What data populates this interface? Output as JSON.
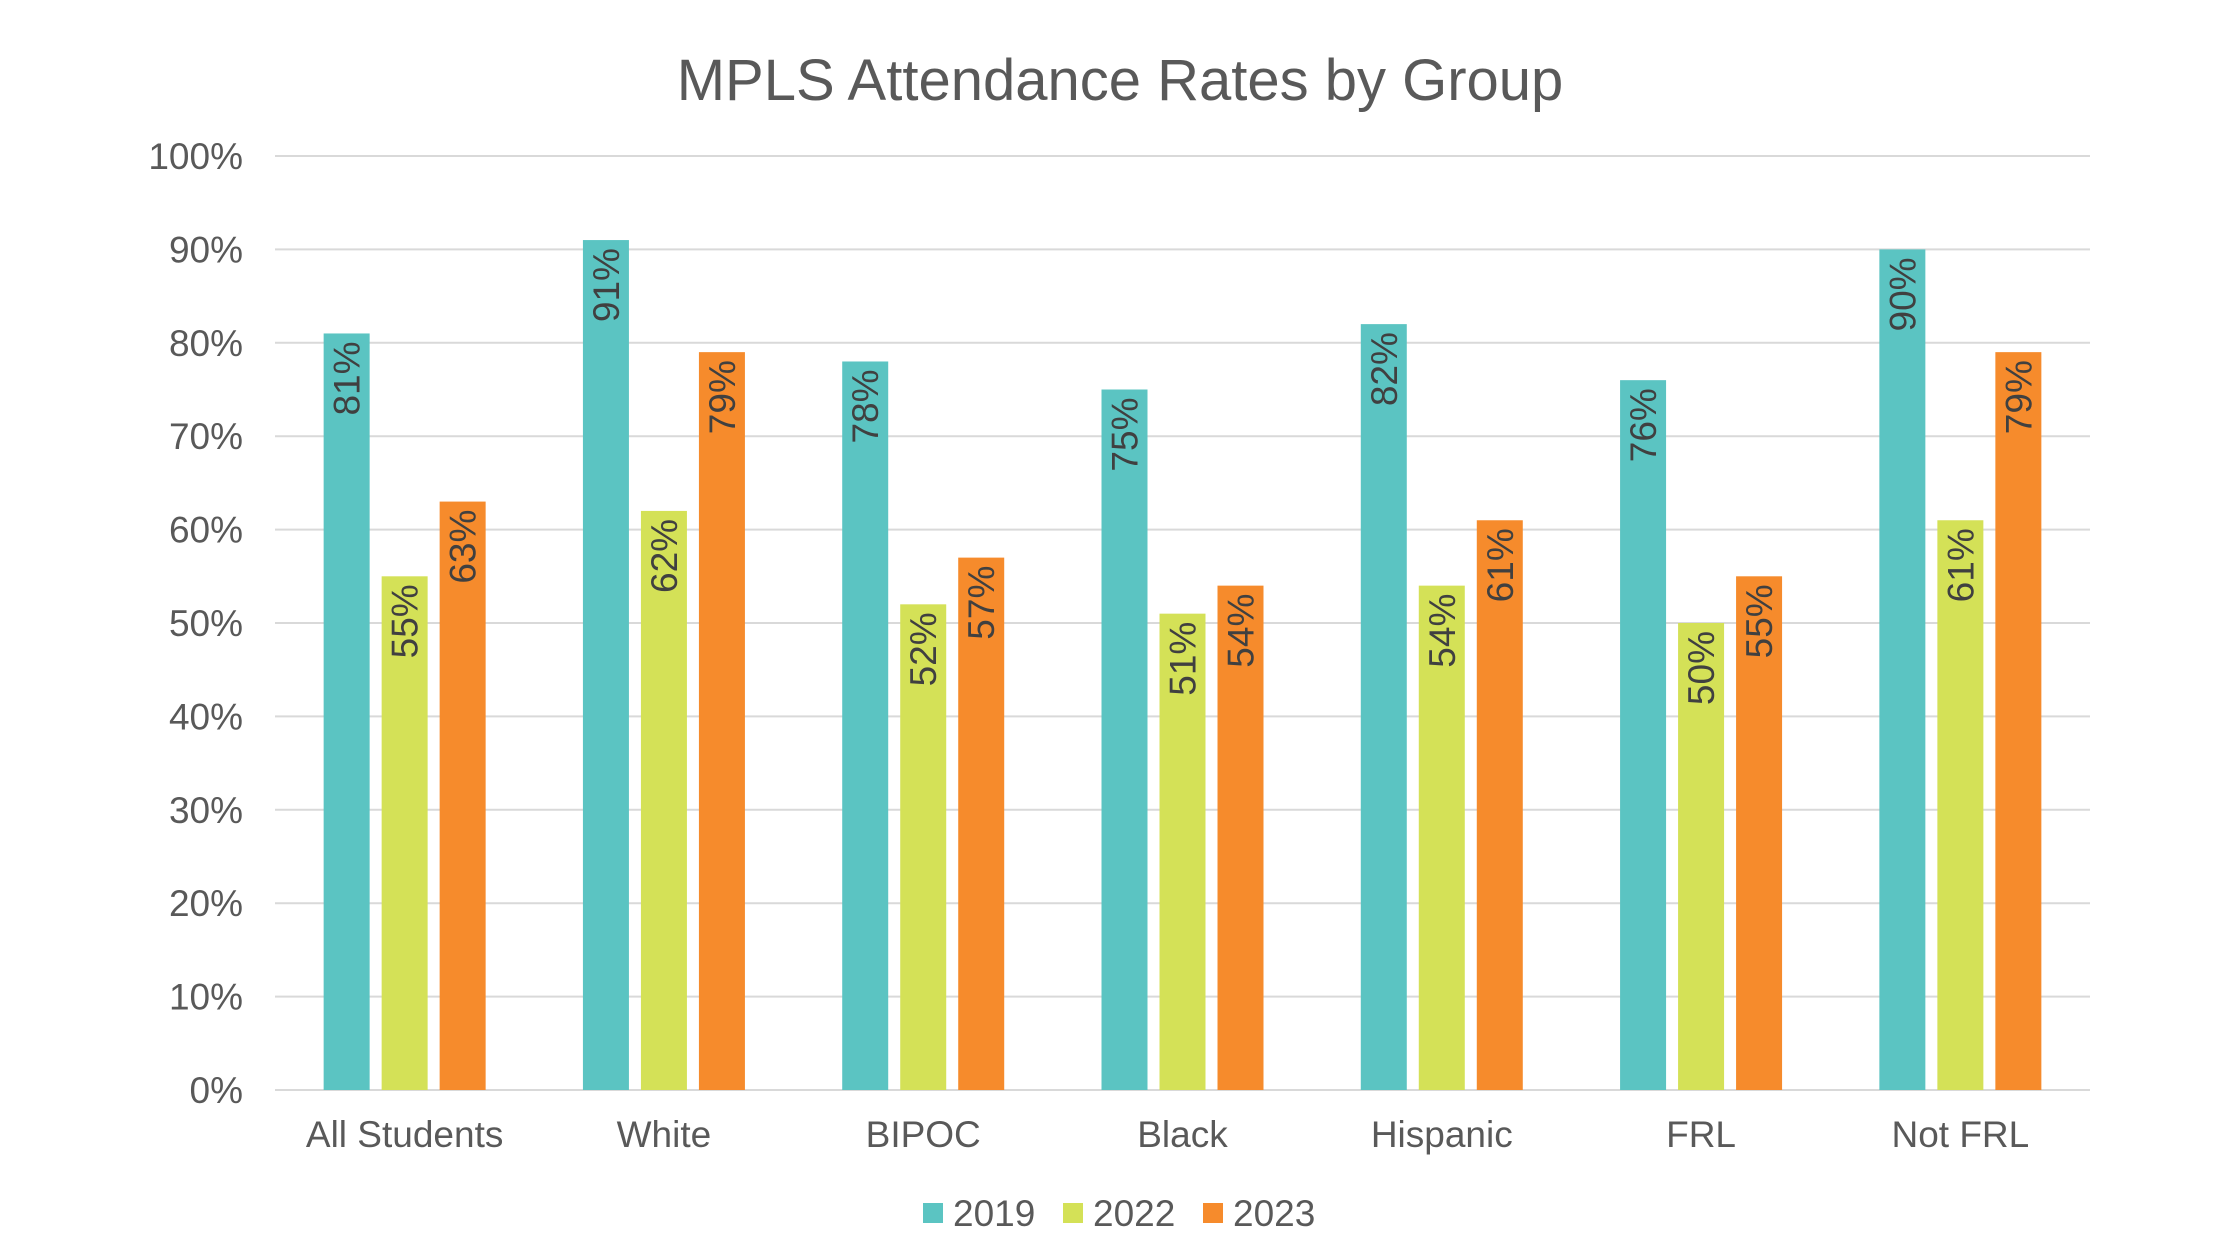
{
  "chart_data": {
    "type": "bar",
    "title": "MPLS Attendance Rates by Group",
    "xlabel": "",
    "ylabel": "",
    "categories": [
      "All Students",
      "White",
      "BIPOC",
      "Black",
      "Hispanic",
      "FRL",
      "Not FRL"
    ],
    "series": [
      {
        "name": "2019",
        "color": "#5bc4c2",
        "values": [
          81,
          91,
          78,
          75,
          82,
          76,
          90
        ]
      },
      {
        "name": "2022",
        "color": "#d4e157",
        "values": [
          55,
          62,
          52,
          51,
          54,
          50,
          61
        ]
      },
      {
        "name": "2023",
        "color": "#f68b2c",
        "values": [
          63,
          79,
          57,
          54,
          61,
          55,
          79
        ]
      }
    ],
    "ylim": [
      0,
      100
    ],
    "y_ticks": [
      0,
      10,
      20,
      30,
      40,
      50,
      60,
      70,
      80,
      90,
      100
    ],
    "y_tick_suffix": "%",
    "data_label_suffix": "%",
    "data_labels": "rotated inside-end",
    "grid": true,
    "legend_position": "bottom"
  }
}
